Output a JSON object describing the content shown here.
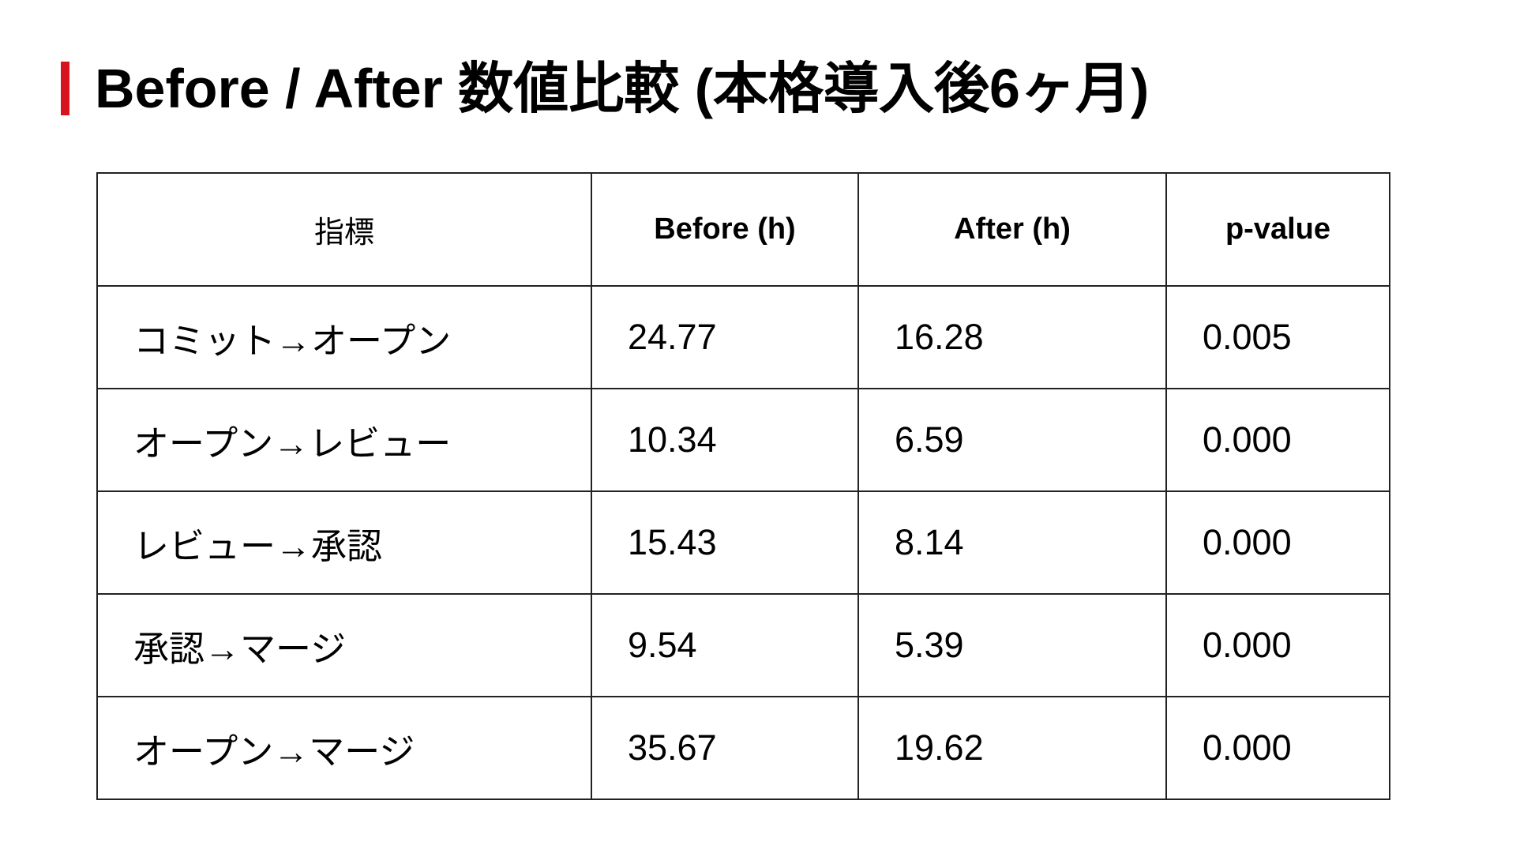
{
  "header": {
    "title": "Before / After 数値比較 (本格導入後6ヶ月)"
  },
  "table": {
    "columns": [
      "指標",
      "Before (h)",
      "After (h)",
      "p-value"
    ],
    "rows": [
      [
        "コミット→オープン",
        "24.77",
        "16.28",
        "0.005"
      ],
      [
        "オープン→レビュー",
        "10.34",
        "6.59",
        "0.000"
      ],
      [
        "レビュー→承認",
        "15.43",
        "8.14",
        "0.000"
      ],
      [
        "承認→マージ",
        "9.54",
        "5.39",
        "0.000"
      ],
      [
        "オープン→マージ",
        "35.67",
        "19.62",
        "0.000"
      ]
    ]
  }
}
